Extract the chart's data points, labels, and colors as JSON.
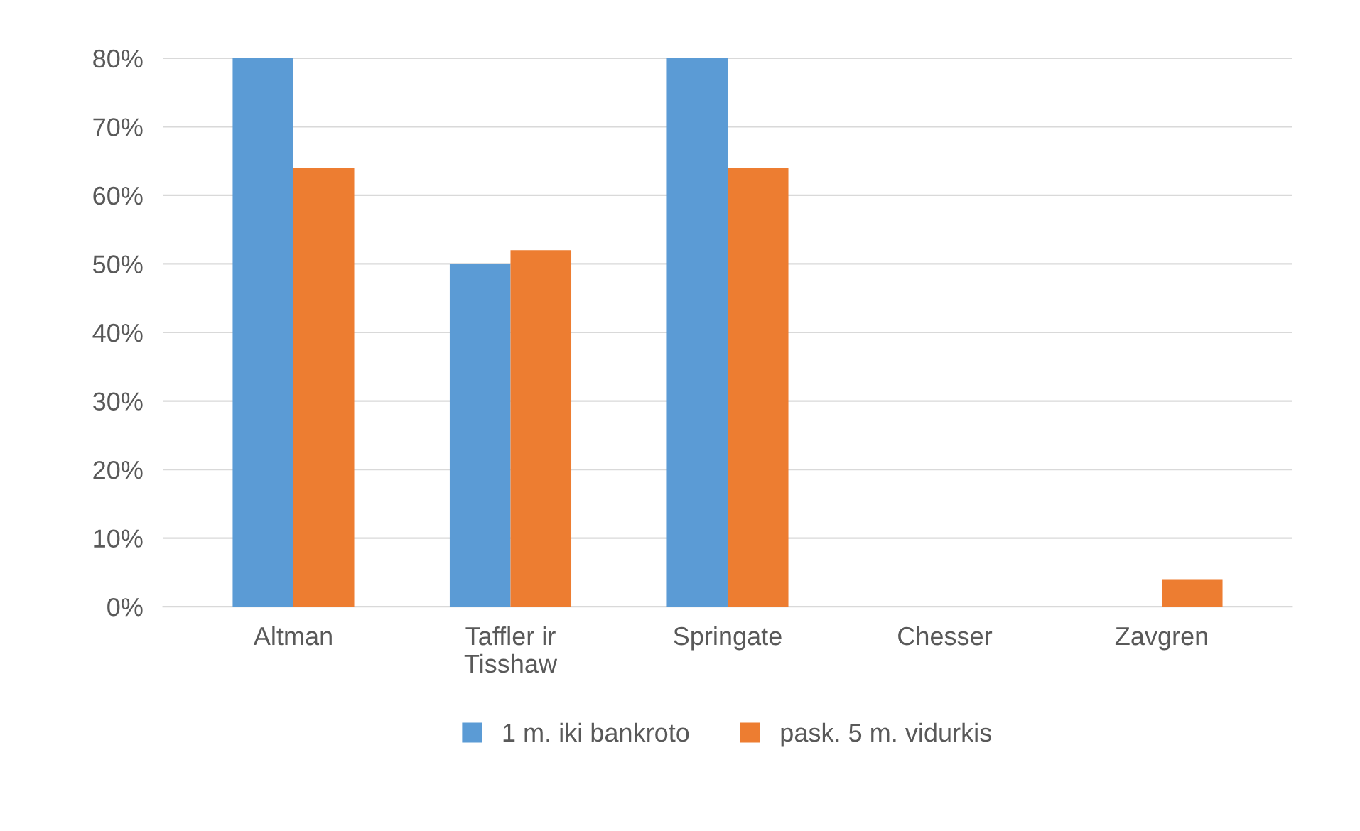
{
  "chart_data": {
    "type": "bar",
    "categories": [
      "Altman",
      "Taffler ir\nTisshaw",
      "Springate",
      "Chesser",
      "Zavgren"
    ],
    "series": [
      {
        "name": "1 m. iki bankroto",
        "color": "#5b9bd5",
        "values": [
          80,
          50,
          80,
          0,
          0
        ]
      },
      {
        "name": "pask. 5 m. vidurkis",
        "color": "#ed7d31",
        "values": [
          64,
          52,
          64,
          0,
          4
        ]
      }
    ],
    "ylim": [
      0,
      80
    ],
    "yticks": [
      {
        "value": 0,
        "label": "0%"
      },
      {
        "value": 10,
        "label": "10%"
      },
      {
        "value": 20,
        "label": "20%"
      },
      {
        "value": 30,
        "label": "30%"
      },
      {
        "value": 40,
        "label": "40%"
      },
      {
        "value": 50,
        "label": "50%"
      },
      {
        "value": 60,
        "label": "60%"
      },
      {
        "value": 70,
        "label": "70%"
      },
      {
        "value": 80,
        "label": "80%"
      }
    ],
    "grid": "y",
    "legend": "bottom"
  }
}
